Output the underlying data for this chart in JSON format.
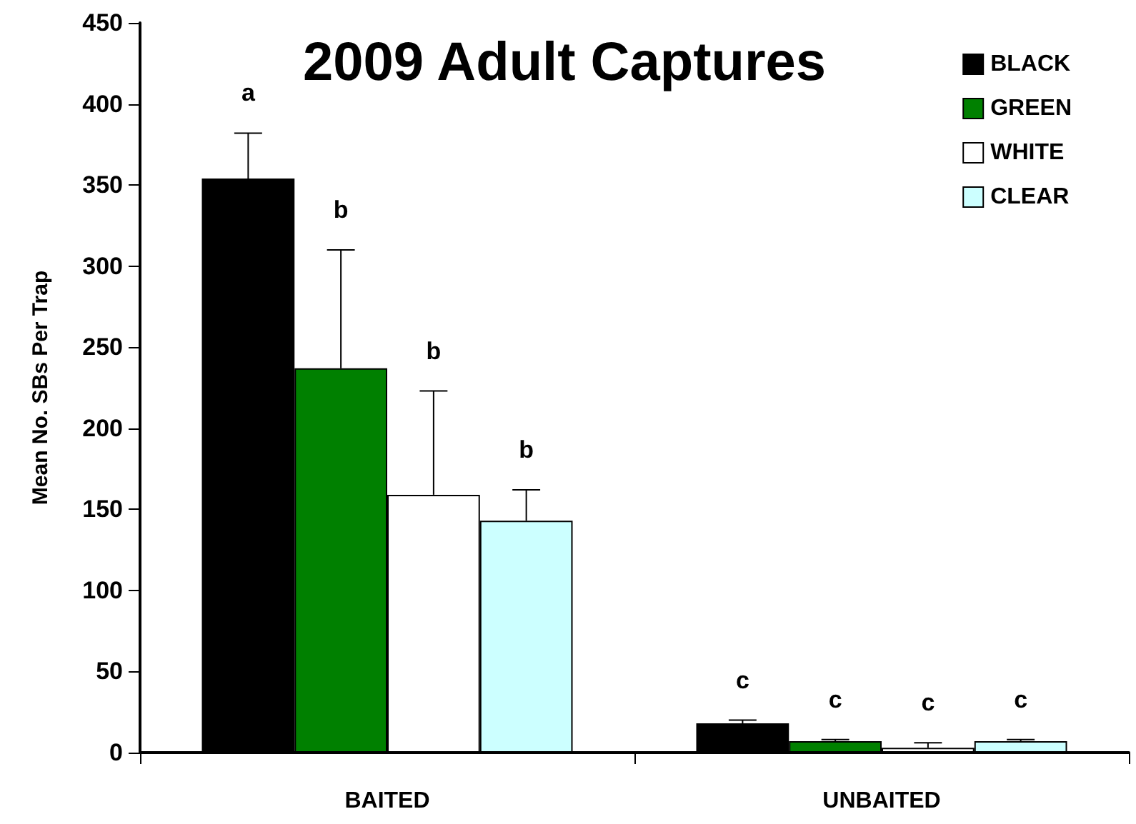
{
  "chart_data": {
    "type": "bar",
    "title": "2009 Adult Captures",
    "ylabel": "Mean No. SBs Per Trap",
    "categories": [
      "BAITED",
      "UNBAITED"
    ],
    "series": [
      {
        "name": "BLACK",
        "color": "#000000",
        "values": [
          354,
          18
        ],
        "errors": [
          [
            354,
            382
          ],
          [
            18,
            20
          ]
        ]
      },
      {
        "name": "GREEN",
        "color": "#008000",
        "values": [
          237,
          7
        ],
        "errors": [
          [
            237,
            310
          ],
          [
            7,
            8
          ]
        ]
      },
      {
        "name": "WHITE",
        "color": "#ffffff",
        "values": [
          159,
          3
        ],
        "errors": [
          [
            159,
            223
          ],
          [
            3,
            6
          ]
        ]
      },
      {
        "name": "CLEAR",
        "color": "#ccffff",
        "values": [
          143,
          7
        ],
        "errors": [
          [
            143,
            162
          ],
          [
            7,
            8
          ]
        ]
      }
    ],
    "ylim": [
      0,
      450
    ],
    "yticks": [
      0,
      50,
      100,
      150,
      200,
      250,
      300,
      350,
      400,
      450
    ],
    "grid": false,
    "legend": "top right",
    "annotations": [
      "a",
      "b",
      "b",
      "b",
      "c",
      "c",
      "c",
      "c"
    ]
  }
}
